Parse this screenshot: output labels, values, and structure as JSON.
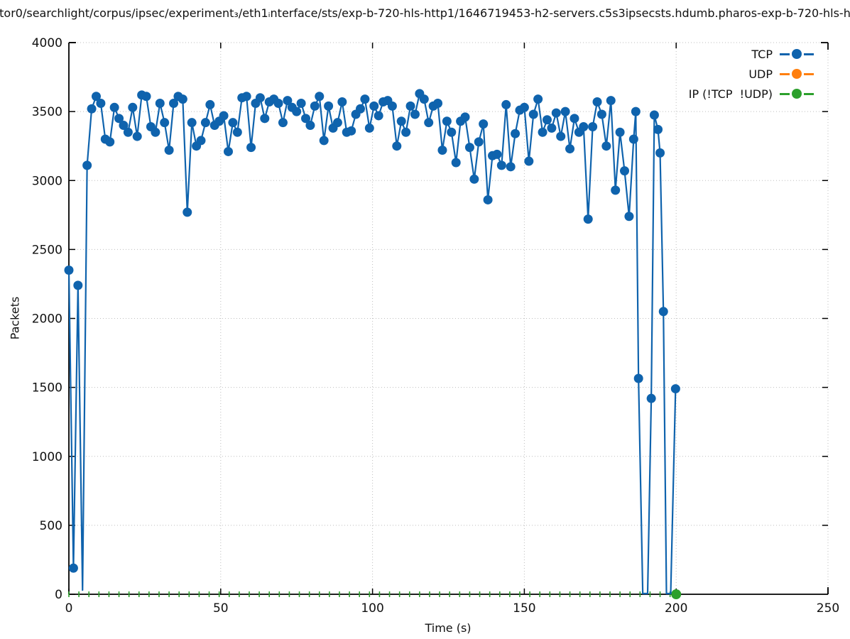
{
  "title": "tor0/searchlight/corpus/ipsec/experiment₃/eth1ᵢnterface/sts/exp-b-720-hls-http1/1646719453-h2-servers.c5s3ipsecsts.hdumb.pharos-exp-b-720-hls-h",
  "axes": {
    "x": {
      "label": "Time (s)",
      "min": 0,
      "max": 250,
      "ticks": [
        0,
        50,
        100,
        150,
        200,
        250
      ]
    },
    "y": {
      "label": "Packets",
      "min": 0,
      "max": 4000,
      "ticks": [
        0,
        500,
        1000,
        1500,
        2000,
        2500,
        3000,
        3500,
        4000
      ]
    }
  },
  "legend": [
    {
      "label": "TCP",
      "color": "#0f63ad"
    },
    {
      "label": "UDP",
      "color": "#ff7f0e"
    },
    {
      "label": "IP (!TCP  !UDP)",
      "color": "#2ca02c"
    }
  ],
  "colors": {
    "grid": "#bdbdbd",
    "axis": "#000000",
    "text": "#111111"
  },
  "chart_data": {
    "type": "line",
    "title": "tor0/searchlight/corpus/ipsec/experiment₃/eth1ᵢnterface/sts/exp-b-720-hls-http1/1646719453-h2-servers.c5s3ipsecsts.hdumb.pharos-exp-b-720-hls-h",
    "xlabel": "Time (s)",
    "ylabel": "Packets",
    "xlim": [
      0,
      250
    ],
    "ylim": [
      0,
      4000
    ],
    "grid": true,
    "legend_position": "top-right-inside",
    "series": [
      {
        "name": "TCP",
        "color": "#0f63ad",
        "marker": "filled-circle",
        "x": [
          0,
          1.5,
          3,
          4.5,
          6,
          7.5,
          9,
          10.5,
          12,
          13.5,
          15,
          16.5,
          18,
          19.5,
          21,
          22.5,
          24,
          25.5,
          27,
          28.5,
          30,
          31.5,
          33,
          34.5,
          36,
          37.5,
          39,
          40.5,
          42,
          43.5,
          45,
          46.5,
          48,
          49.5,
          51,
          52.5,
          54,
          55.5,
          57,
          58.5,
          60,
          61.5,
          63,
          64.5,
          66,
          67.5,
          69,
          70.5,
          72,
          73.5,
          75,
          76.5,
          78,
          79.5,
          81,
          82.5,
          84,
          85.5,
          87,
          88.5,
          90,
          91.5,
          93,
          94.5,
          96,
          97.5,
          99,
          100.5,
          102,
          103.5,
          105,
          106.5,
          108,
          109.5,
          111,
          112.5,
          114,
          115.5,
          117,
          118.5,
          120,
          121.5,
          123,
          124.5,
          126,
          127.5,
          129,
          130.5,
          132,
          133.5,
          135,
          136.5,
          138,
          139.5,
          141,
          142.5,
          144,
          145.5,
          147,
          148.5,
          150,
          151.5,
          153,
          154.5,
          156,
          157.5,
          159,
          160.5,
          162,
          163.5,
          165,
          166.5,
          168,
          169.5,
          171,
          172.5,
          174,
          175.5,
          177,
          178.5,
          180,
          181.5,
          183,
          184.5,
          186,
          186.7,
          187.6,
          189,
          190.6,
          191.8,
          192.8,
          194,
          194.7,
          195.8,
          196.8,
          198.2,
          199.8
        ],
        "y": [
          2350,
          190,
          2240,
          30,
          3110,
          3520,
          3610,
          3560,
          3300,
          3280,
          3530,
          3450,
          3400,
          3350,
          3530,
          3320,
          3620,
          3610,
          3390,
          3350,
          3560,
          3420,
          3220,
          3560,
          3610,
          3590,
          2770,
          3420,
          3250,
          3290,
          3420,
          3550,
          3400,
          3430,
          3470,
          3210,
          3420,
          3350,
          3600,
          3610,
          3240,
          3560,
          3600,
          3450,
          3570,
          3590,
          3560,
          3420,
          3580,
          3530,
          3500,
          3560,
          3450,
          3400,
          3540,
          3610,
          3290,
          3540,
          3380,
          3420,
          3570,
          3350,
          3360,
          3480,
          3520,
          3590,
          3380,
          3540,
          3470,
          3570,
          3580,
          3540,
          3250,
          3430,
          3350,
          3540,
          3480,
          3630,
          3590,
          3420,
          3540,
          3560,
          3220,
          3430,
          3350,
          3130,
          3430,
          3460,
          3240,
          3010,
          3280,
          3410,
          2860,
          3180,
          3190,
          3110,
          3550,
          3100,
          3340,
          3510,
          3530,
          3140,
          3480,
          3590,
          3350,
          3440,
          3380,
          3490,
          3320,
          3500,
          3230,
          3450,
          3350,
          3390,
          2720,
          3390,
          3570,
          3480,
          3250,
          3580,
          2930,
          3350,
          3070,
          2740,
          3300,
          3500,
          1565,
          5,
          5,
          1420,
          3475,
          3370,
          3200,
          2050,
          5,
          5,
          1490
        ]
      },
      {
        "name": "UDP",
        "color": "#ff7f0e",
        "marker": "filled-circle",
        "x": [],
        "y": []
      },
      {
        "name": "IP (!TCP  !UDP)",
        "color": "#2ca02c",
        "marker": "filled-circle",
        "constant_value": 0,
        "x_range": [
          0,
          200
        ],
        "tick_mark_interval": 3.3,
        "final_point": {
          "x": 200,
          "y": 0
        }
      }
    ]
  }
}
